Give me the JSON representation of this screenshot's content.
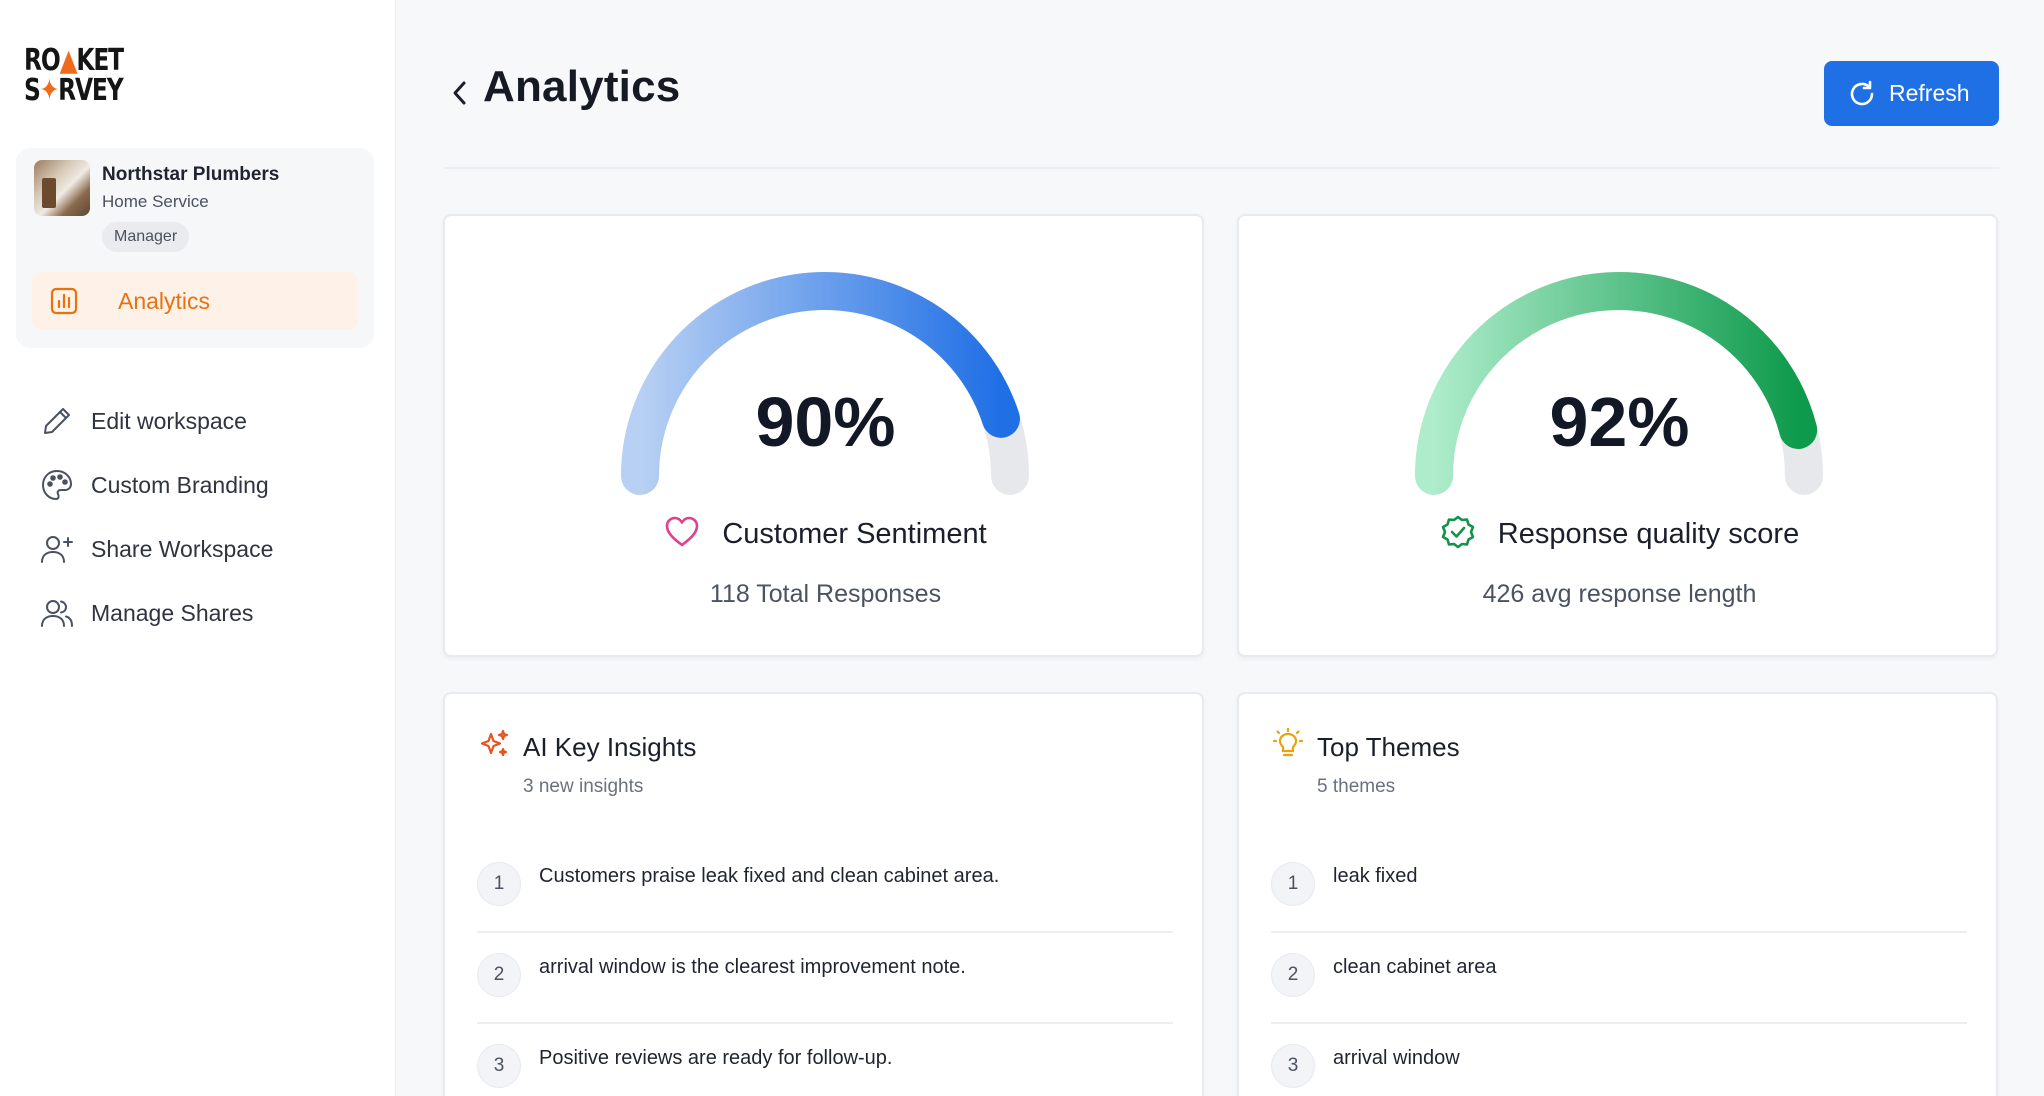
{
  "brand": {
    "logo_line1_a": "RO",
    "logo_line1_b": "KET",
    "logo_line2_a": "S",
    "logo_line2_b": "RVEY",
    "accent": "#f06a1b"
  },
  "workspace": {
    "name": "Northstar Plumbers",
    "type": "Home Service",
    "role": "Manager"
  },
  "sidebar": {
    "active_item": {
      "label": "Analytics",
      "icon": "bar-chart-icon",
      "color": "#e8720e"
    },
    "items": [
      {
        "label": "Edit workspace",
        "icon": "pencil-icon"
      },
      {
        "label": "Custom Branding",
        "icon": "palette-icon"
      },
      {
        "label": "Share Workspace",
        "icon": "user-plus-icon"
      },
      {
        "label": "Manage Shares",
        "icon": "users-icon"
      }
    ]
  },
  "header": {
    "title": "Analytics",
    "back_icon": "chevron-left-icon",
    "refresh_label": "Refresh",
    "refresh_color": "#1f6fe5"
  },
  "gauges": [
    {
      "value": 90,
      "value_label": "90%",
      "label": "Customer Sentiment",
      "icon": "heart-icon",
      "sub": "118 Total Responses",
      "colors": [
        "#a9c6f2",
        "#1f6fe5"
      ]
    },
    {
      "value": 92,
      "value_label": "92%",
      "label": "Response quality score",
      "icon": "badge-check-icon",
      "sub": "426 avg response length",
      "colors": [
        "#a6ecc3",
        "#0e9a4c"
      ]
    }
  ],
  "insights": {
    "title": "AI Key Insights",
    "sub": "3 new insights",
    "icon": "sparkles-icon",
    "items": [
      "Customers praise leak fixed and clean cabinet area.",
      "arrival window is the clearest improvement note.",
      "Positive reviews are ready for follow-up."
    ]
  },
  "themes": {
    "title": "Top Themes",
    "sub": "5 themes",
    "icon": "lightbulb-icon",
    "items": [
      "leak fixed",
      "clean cabinet area",
      "arrival window"
    ]
  },
  "row_numbers": [
    "1",
    "2",
    "3"
  ]
}
